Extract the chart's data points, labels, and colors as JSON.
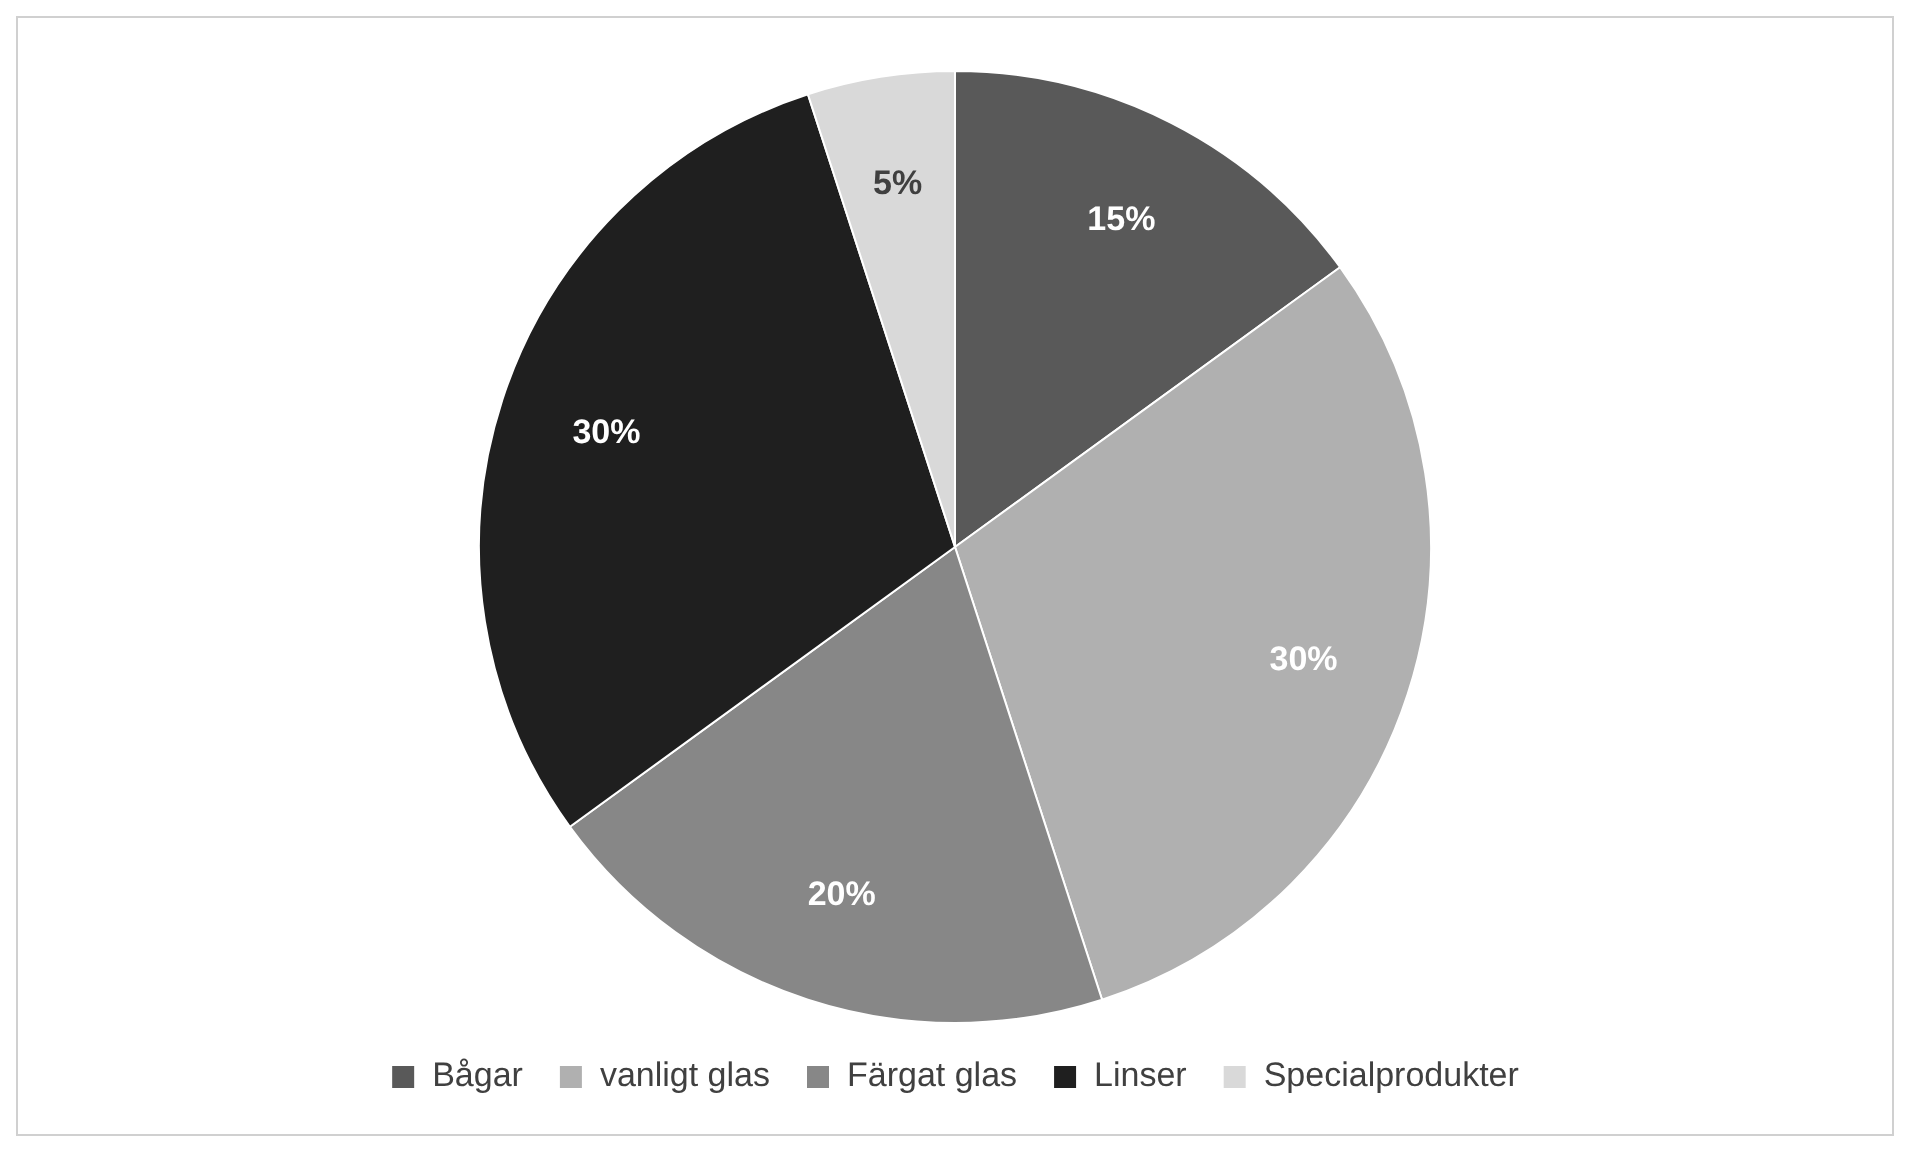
{
  "chart_data": {
    "type": "pie",
    "categories": [
      "Bågar",
      "vanligt glas",
      "Färgat glas",
      "Linser",
      "Specialprodukter"
    ],
    "values": [
      15,
      30,
      20,
      30,
      5
    ],
    "colors": [
      "#595959",
      "#b0b0b0",
      "#878787",
      "#1f1f1f",
      "#d9d9d9"
    ],
    "value_labels": [
      "15%",
      "30%",
      "20%",
      "30%",
      "5%"
    ],
    "legend": "bottom"
  }
}
